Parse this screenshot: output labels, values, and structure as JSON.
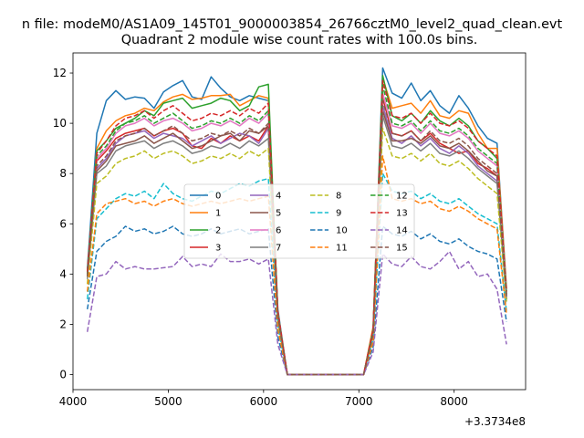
{
  "chart_data": {
    "type": "line",
    "suptitle": "n file: modeM0/AS1A09_145T01_9000003854_26766cztM0_level2_quad_clean.evt",
    "title": "Quadrant 2 module wise count rates with 100.0s bins.",
    "xlabel": "",
    "ylabel": "",
    "offset_label": "+3.3734e8",
    "xlim": [
      4000,
      8750
    ],
    "ylim": [
      -0.6,
      12.8
    ],
    "x_ticks": [
      4000,
      5000,
      6000,
      7000,
      8000
    ],
    "y_ticks": [
      0,
      2,
      4,
      6,
      8,
      10,
      12
    ],
    "x": [
      4150,
      4250,
      4350,
      4450,
      4550,
      4650,
      4750,
      4850,
      4950,
      5050,
      5150,
      5250,
      5350,
      5450,
      5550,
      5650,
      5750,
      5850,
      5950,
      6050,
      6150,
      6250,
      6350,
      6450,
      6550,
      6650,
      6750,
      6850,
      6950,
      7050,
      7150,
      7250,
      7350,
      7450,
      7550,
      7650,
      7750,
      7850,
      7950,
      8050,
      8150,
      8250,
      8350,
      8450,
      8550
    ],
    "series": [
      {
        "name": "0",
        "color": "#1f77b4",
        "linestyle": "solid",
        "values": [
          4.2,
          9.6,
          10.9,
          11.3,
          10.95,
          11.05,
          11.0,
          10.6,
          11.25,
          11.5,
          11.7,
          11.05,
          10.95,
          11.85,
          11.4,
          11.05,
          10.9,
          11.1,
          11.0,
          10.9,
          2.6,
          0,
          0,
          0,
          0,
          0,
          0,
          0,
          0,
          0,
          1.8,
          12.2,
          11.2,
          11.0,
          11.6,
          10.9,
          11.3,
          10.7,
          10.4,
          11.1,
          10.6,
          9.9,
          9.4,
          9.2,
          3.4
        ]
      },
      {
        "name": "1",
        "color": "#ff7f0e",
        "linestyle": "solid",
        "values": [
          4.0,
          9.0,
          9.7,
          10.1,
          10.3,
          10.4,
          10.6,
          10.5,
          10.85,
          11.05,
          11.15,
          10.95,
          11.0,
          11.1,
          11.1,
          11.15,
          10.7,
          10.9,
          11.1,
          11.0,
          2.5,
          0,
          0,
          0,
          0,
          0,
          0,
          0,
          0,
          0,
          1.9,
          11.8,
          10.6,
          10.7,
          10.8,
          10.4,
          10.9,
          10.3,
          10.2,
          10.5,
          10.4,
          9.6,
          9.0,
          9.0,
          3.4
        ]
      },
      {
        "name": "2",
        "color": "#2ca02c",
        "linestyle": "solid",
        "values": [
          4.1,
          8.9,
          9.3,
          9.8,
          10.0,
          10.2,
          10.5,
          10.3,
          10.8,
          10.9,
          11.0,
          10.6,
          10.7,
          10.8,
          11.0,
          10.9,
          10.5,
          10.7,
          11.45,
          11.55,
          2.4,
          0,
          0,
          0,
          0,
          0,
          0,
          0,
          0,
          0,
          1.8,
          11.9,
          10.3,
          10.1,
          10.4,
          10.0,
          10.5,
          10.1,
          9.9,
          10.2,
          9.9,
          9.3,
          9.0,
          8.6,
          3.3
        ]
      },
      {
        "name": "3",
        "color": "#d62728",
        "linestyle": "solid",
        "values": [
          3.9,
          8.5,
          8.9,
          9.4,
          9.6,
          9.7,
          9.8,
          9.5,
          9.7,
          9.8,
          9.6,
          9.1,
          9.0,
          9.4,
          9.2,
          9.5,
          9.3,
          9.5,
          9.3,
          9.9,
          2.3,
          0,
          0,
          0,
          0,
          0,
          0,
          0,
          0,
          0,
          1.7,
          11.0,
          9.6,
          9.5,
          9.7,
          9.3,
          9.6,
          9.2,
          9.0,
          8.8,
          8.9,
          8.4,
          8.2,
          7.9,
          3.1
        ]
      },
      {
        "name": "4",
        "color": "#9467bd",
        "linestyle": "solid",
        "values": [
          4.0,
          8.2,
          8.6,
          9.2,
          9.5,
          9.6,
          9.7,
          9.4,
          9.6,
          9.5,
          9.4,
          9.1,
          9.3,
          9.5,
          9.2,
          9.4,
          9.6,
          9.5,
          9.2,
          9.8,
          2.3,
          0,
          0,
          0,
          0,
          0,
          0,
          0,
          0,
          0,
          1.7,
          10.7,
          9.4,
          9.2,
          9.5,
          9.1,
          9.4,
          9.0,
          8.8,
          9.1,
          8.8,
          8.3,
          8.0,
          7.7,
          3.1
        ]
      },
      {
        "name": "5",
        "color": "#8c564b",
        "linestyle": "solid",
        "values": [
          3.9,
          8.1,
          8.5,
          9.1,
          9.2,
          9.3,
          9.5,
          9.2,
          9.4,
          9.6,
          9.3,
          9.0,
          9.1,
          9.3,
          9.5,
          9.6,
          9.3,
          9.7,
          9.6,
          9.9,
          2.2,
          0,
          0,
          0,
          0,
          0,
          0,
          0,
          0,
          0,
          1.6,
          10.5,
          9.3,
          9.3,
          9.4,
          9.2,
          9.5,
          9.1,
          9.0,
          9.2,
          8.9,
          8.5,
          8.1,
          7.9,
          3.0
        ]
      },
      {
        "name": "6",
        "color": "#e377c2",
        "linestyle": "solid",
        "values": [
          4.0,
          8.6,
          9.0,
          9.6,
          9.9,
          10.0,
          10.2,
          9.9,
          10.1,
          10.2,
          10.0,
          9.7,
          9.8,
          10.0,
          9.9,
          10.1,
          9.9,
          10.2,
          10.0,
          10.4,
          2.4,
          0,
          0,
          0,
          0,
          0,
          0,
          0,
          0,
          0,
          1.7,
          11.2,
          9.9,
          9.8,
          10.0,
          9.6,
          10.0,
          9.6,
          9.5,
          9.7,
          9.4,
          8.9,
          8.6,
          8.3,
          3.2
        ]
      },
      {
        "name": "7",
        "color": "#7f7f7f",
        "linestyle": "solid",
        "values": [
          3.8,
          8.0,
          8.3,
          8.9,
          9.1,
          9.2,
          9.3,
          9.0,
          9.2,
          9.3,
          9.1,
          8.8,
          8.9,
          9.1,
          9.0,
          9.2,
          9.0,
          9.3,
          9.1,
          9.4,
          2.2,
          0,
          0,
          0,
          0,
          0,
          0,
          0,
          0,
          0,
          1.6,
          10.3,
          9.1,
          9.0,
          9.2,
          8.9,
          9.2,
          8.8,
          8.7,
          8.9,
          8.6,
          8.2,
          7.9,
          7.6,
          3.0
        ]
      },
      {
        "name": "8",
        "color": "#bcbd22",
        "linestyle": "dashed",
        "values": [
          3.6,
          7.6,
          7.9,
          8.4,
          8.6,
          8.7,
          8.9,
          8.6,
          8.8,
          8.9,
          8.7,
          8.4,
          8.5,
          8.7,
          8.6,
          8.8,
          8.6,
          8.9,
          8.7,
          9.0,
          2.1,
          0,
          0,
          0,
          0,
          0,
          0,
          0,
          0,
          0,
          1.5,
          9.8,
          8.7,
          8.6,
          8.8,
          8.5,
          8.8,
          8.4,
          8.3,
          8.5,
          8.2,
          7.8,
          7.5,
          7.2,
          2.9
        ]
      },
      {
        "name": "9",
        "color": "#17becf",
        "linestyle": "dashed",
        "values": [
          3.0,
          6.2,
          6.6,
          7.0,
          7.2,
          7.1,
          7.3,
          7.0,
          7.6,
          7.2,
          7.0,
          6.9,
          7.1,
          7.3,
          7.2,
          7.4,
          7.6,
          7.5,
          7.7,
          7.8,
          1.9,
          0,
          0,
          0,
          0,
          0,
          0,
          0,
          0,
          0,
          1.4,
          8.0,
          7.3,
          7.2,
          7.3,
          7.0,
          7.2,
          6.9,
          6.8,
          7.0,
          6.7,
          6.4,
          6.2,
          6.0,
          2.5
        ]
      },
      {
        "name": "10",
        "color": "#1f77b4",
        "linestyle": "dashed",
        "values": [
          2.6,
          4.9,
          5.3,
          5.5,
          5.9,
          5.7,
          5.8,
          5.6,
          5.7,
          5.9,
          5.6,
          5.5,
          5.6,
          5.8,
          5.6,
          5.7,
          5.8,
          5.6,
          5.7,
          5.8,
          1.5,
          0,
          0,
          0,
          0,
          0,
          0,
          0,
          0,
          0,
          1.1,
          5.9,
          5.6,
          5.5,
          5.7,
          5.4,
          5.6,
          5.3,
          5.2,
          5.4,
          5.1,
          4.9,
          4.8,
          4.6,
          2.1
        ]
      },
      {
        "name": "11",
        "color": "#ff7f0e",
        "linestyle": "dashed",
        "values": [
          3.3,
          6.4,
          6.8,
          6.9,
          7.0,
          6.8,
          6.9,
          6.7,
          6.9,
          7.0,
          6.8,
          6.7,
          6.8,
          6.9,
          6.8,
          6.9,
          7.0,
          6.9,
          7.0,
          7.1,
          1.8,
          0,
          0,
          0,
          0,
          0,
          0,
          0,
          0,
          0,
          1.3,
          8.7,
          7.0,
          6.9,
          7.0,
          6.8,
          6.9,
          6.6,
          6.5,
          6.7,
          6.5,
          6.2,
          6.0,
          5.8,
          2.4
        ]
      },
      {
        "name": "12",
        "color": "#2ca02c",
        "linestyle": "dashed",
        "values": [
          4.0,
          8.7,
          9.1,
          9.7,
          10.0,
          10.1,
          10.3,
          10.0,
          10.2,
          10.4,
          10.1,
          9.8,
          9.9,
          10.1,
          10.0,
          10.2,
          10.0,
          10.3,
          10.1,
          10.5,
          2.4,
          0,
          0,
          0,
          0,
          0,
          0,
          0,
          0,
          0,
          1.7,
          11.5,
          10.0,
          9.9,
          10.1,
          9.7,
          10.1,
          9.7,
          9.6,
          9.8,
          9.5,
          9.0,
          8.7,
          8.4,
          3.2
        ]
      },
      {
        "name": "13",
        "color": "#d62728",
        "linestyle": "dashed",
        "values": [
          4.1,
          8.8,
          9.3,
          9.9,
          10.2,
          10.3,
          10.5,
          10.2,
          10.5,
          10.7,
          10.4,
          10.1,
          10.2,
          10.4,
          10.3,
          10.5,
          10.3,
          10.6,
          10.4,
          10.8,
          2.5,
          0,
          0,
          0,
          0,
          0,
          0,
          0,
          0,
          0,
          1.8,
          11.7,
          10.3,
          10.2,
          10.4,
          10.0,
          10.4,
          10.0,
          9.9,
          10.1,
          9.8,
          9.3,
          9.0,
          8.7,
          3.3
        ]
      },
      {
        "name": "14",
        "color": "#9467bd",
        "linestyle": "dashed",
        "values": [
          1.7,
          3.9,
          4.0,
          4.5,
          4.2,
          4.3,
          4.2,
          4.2,
          4.25,
          4.3,
          4.7,
          4.3,
          4.4,
          4.3,
          4.8,
          4.5,
          4.5,
          4.6,
          4.4,
          4.6,
          1.2,
          0,
          0,
          0,
          0,
          0,
          0,
          0,
          0,
          0,
          0.9,
          4.8,
          4.4,
          4.3,
          4.7,
          4.3,
          4.2,
          4.5,
          4.9,
          4.2,
          4.5,
          3.9,
          4.0,
          3.4,
          1.2
        ]
      },
      {
        "name": "15",
        "color": "#8c564b",
        "linestyle": "dashed",
        "values": [
          3.9,
          8.3,
          8.7,
          9.3,
          9.5,
          9.6,
          9.8,
          9.5,
          9.7,
          9.9,
          9.6,
          9.3,
          9.4,
          9.6,
          9.5,
          9.7,
          9.5,
          9.8,
          9.6,
          10.0,
          2.3,
          0,
          0,
          0,
          0,
          0,
          0,
          0,
          0,
          0,
          1.6,
          10.9,
          9.6,
          9.5,
          9.7,
          9.3,
          9.7,
          9.3,
          9.2,
          9.4,
          9.1,
          8.6,
          8.3,
          8.0,
          3.1
        ]
      }
    ]
  }
}
